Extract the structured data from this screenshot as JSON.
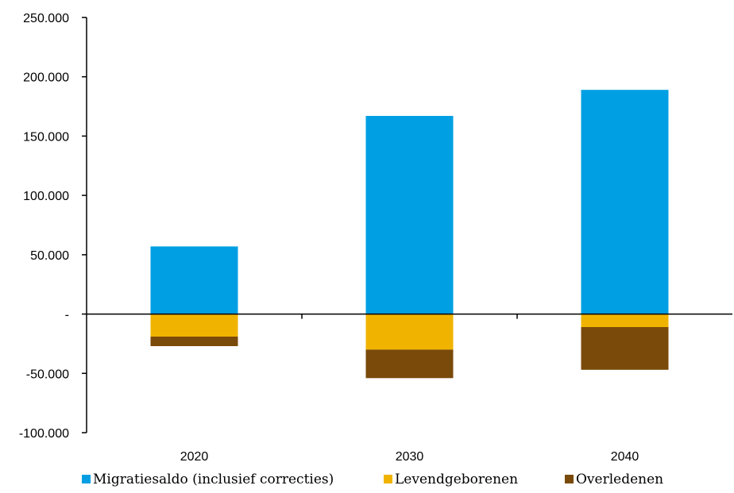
{
  "chart_data": {
    "type": "bar",
    "stacked": true,
    "title": "",
    "xlabel": "",
    "ylabel": "",
    "categories": [
      "2020",
      "2030",
      "2040"
    ],
    "ylim": [
      -100000,
      250000
    ],
    "y_ticks": [
      250000,
      200000,
      150000,
      100000,
      50000,
      0,
      -50000,
      -100000
    ],
    "y_tick_labels": [
      "250.000",
      "200.000",
      "150.000",
      "100.000",
      "50.000",
      "-",
      "-50.000",
      "-100.000"
    ],
    "grid": false,
    "legend_position": "bottom",
    "series": [
      {
        "name": "Migratiesaldo (inclusief correcties)",
        "color": "#009fe3",
        "values": [
          57000,
          167000,
          189000
        ]
      },
      {
        "name": "Levendgeborenen",
        "color": "#f0b400",
        "values": [
          -19000,
          -30000,
          -11000
        ]
      },
      {
        "name": "Overledenen",
        "color": "#7a4a0a",
        "values": [
          -8000,
          -24000,
          -36000
        ]
      }
    ]
  }
}
